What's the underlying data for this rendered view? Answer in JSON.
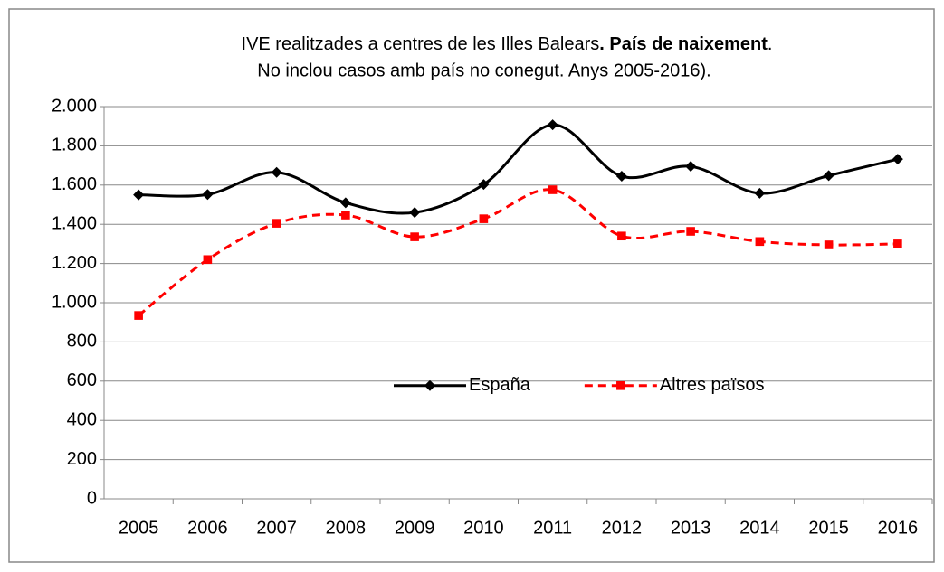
{
  "chart_data": {
    "type": "line",
    "title": [
      "IVE realitzades a centres de les Illes Balears",
      ". País de naixement",
      "."
    ],
    "subtitle": "No inclou casos amb país no conegut. Anys 2005-2016).",
    "categories": [
      "2005",
      "2006",
      "2007",
      "2008",
      "2009",
      "2010",
      "2011",
      "2012",
      "2013",
      "2014",
      "2015",
      "2016"
    ],
    "series": [
      {
        "name": "España",
        "color": "#000000",
        "marker": "diamond",
        "dash": "solid",
        "values": [
          1550,
          1552,
          1665,
          1510,
          1460,
          1603,
          1907,
          1645,
          1695,
          1558,
          1648,
          1732
        ]
      },
      {
        "name": "Altres països",
        "color": "#ff0000",
        "marker": "square",
        "dash": "dashed",
        "values": [
          935,
          1220,
          1405,
          1447,
          1336,
          1428,
          1576,
          1340,
          1364,
          1312,
          1295,
          1300
        ]
      }
    ],
    "ylim": [
      0,
      2000
    ],
    "yticks": [
      0,
      200,
      400,
      600,
      800,
      {
        "value": 1000,
        "label": "1.000"
      },
      {
        "value": 1200,
        "label": "1.200"
      },
      {
        "value": 1400,
        "label": "1.400"
      },
      {
        "value": 1600,
        "label": "1.600"
      },
      {
        "value": 1800,
        "label": "1.800"
      },
      {
        "value": 2000,
        "label": "2.000"
      }
    ],
    "grid": true,
    "smooth": true,
    "legend": "center"
  }
}
